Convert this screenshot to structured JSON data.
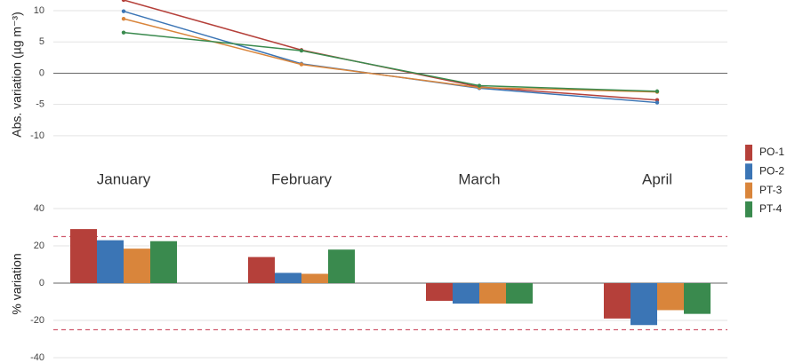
{
  "chart_data": [
    {
      "type": "line",
      "ylabel": "Abs. variation (µg m⁻³)",
      "categories": [
        "January",
        "February",
        "March",
        "April"
      ],
      "series": [
        {
          "name": "PO-1",
          "color": "#b5403a",
          "values": [
            11.7,
            3.7,
            -2.2,
            -4.3
          ]
        },
        {
          "name": "PO-2",
          "color": "#3b75b5",
          "values": [
            9.9,
            1.5,
            -2.4,
            -4.7
          ]
        },
        {
          "name": "PT-3",
          "color": "#d9853b",
          "values": [
            8.7,
            1.4,
            -2.3,
            -3.0
          ]
        },
        {
          "name": "PT-4",
          "color": "#3a8a4e",
          "values": [
            6.5,
            3.6,
            -2.0,
            -2.9
          ]
        }
      ],
      "ylim": [
        -12,
        11.7
      ],
      "yticks": [
        -10,
        -5,
        0,
        5,
        10
      ],
      "grid": true,
      "legend": "right"
    },
    {
      "type": "bar",
      "ylabel": "% variation",
      "series": [
        {
          "color": "#b5403a",
          "values": [
            29,
            14,
            -9.5,
            -19
          ]
        },
        {
          "color": "#3b75b5",
          "values": [
            23,
            5.5,
            -11,
            -22.5
          ]
        },
        {
          "color": "#d9853b",
          "values": [
            18.5,
            5,
            -11,
            -14.5
          ]
        },
        {
          "color": "#3a8a4e",
          "values": [
            22.5,
            18,
            -11,
            -16.5
          ]
        }
      ],
      "hlines": [
        25,
        -25
      ],
      "ylim": [
        -40,
        40
      ],
      "yticks": [
        -40,
        -20,
        0,
        20,
        40
      ],
      "grid": true
    }
  ]
}
